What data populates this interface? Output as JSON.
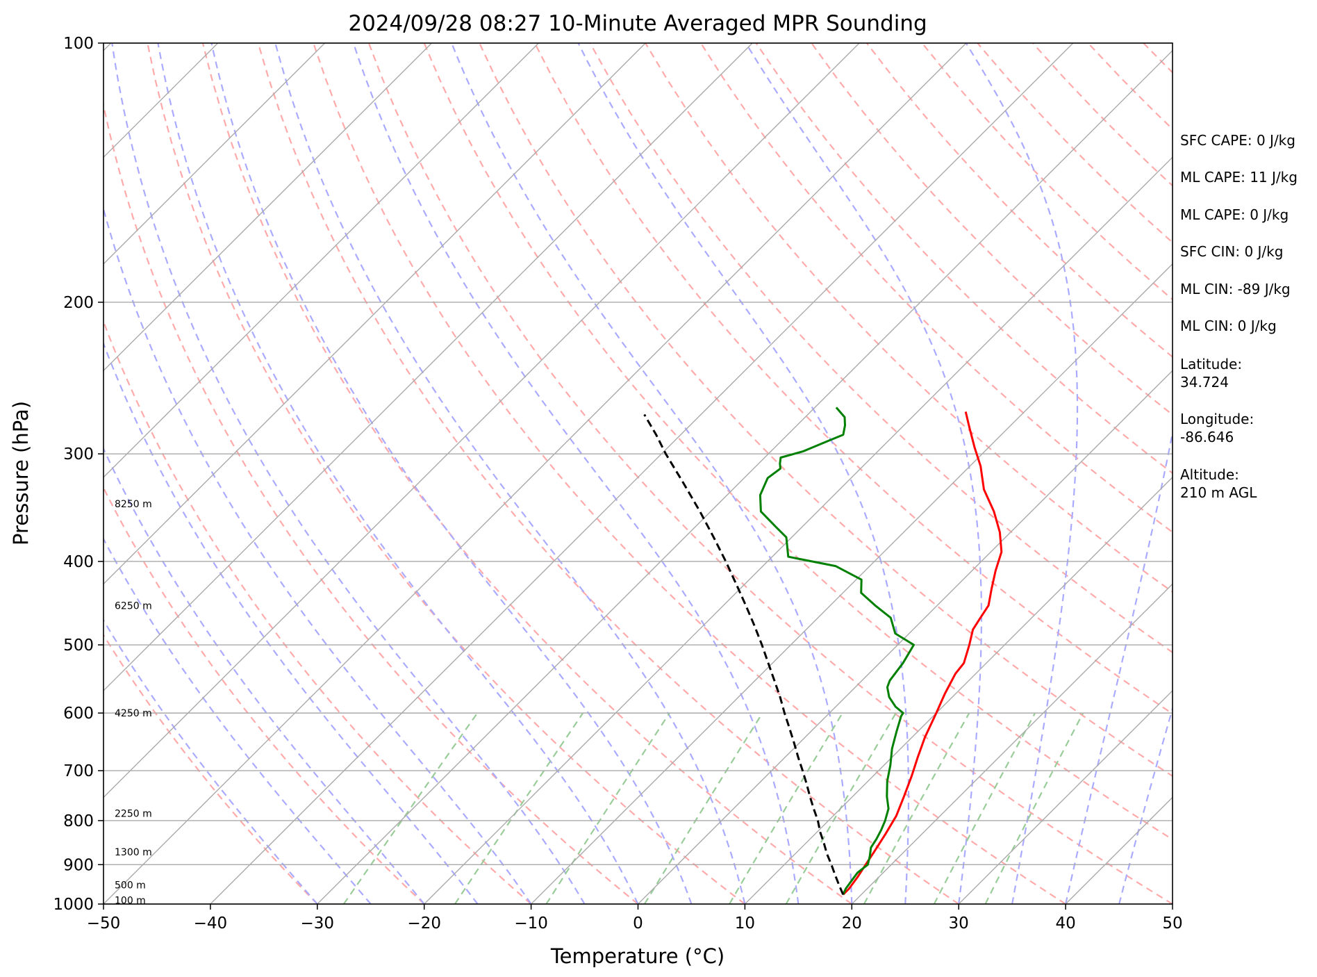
{
  "chart_data": {
    "type": "line",
    "title": "2024/09/28 08:27 10-Minute Averaged MPR Sounding",
    "xlabel": "Temperature (°C)",
    "ylabel": "Pressure (hPa)",
    "xlim": [
      -50,
      50
    ],
    "ylim": [
      1000,
      100
    ],
    "yscale": "log",
    "skew": "skew-T log-P",
    "grid": true,
    "x_ticks": [
      "−50",
      "−40",
      "−30",
      "−20",
      "−10",
      "0",
      "10",
      "20",
      "30",
      "40",
      "50"
    ],
    "x_tick_values": [
      -50,
      -40,
      -30,
      -20,
      -10,
      0,
      10,
      20,
      30,
      40,
      50
    ],
    "y_ticks": [
      "100",
      "200",
      "300",
      "400",
      "500",
      "600",
      "700",
      "800",
      "900",
      "1000"
    ],
    "y_tick_values": [
      100,
      200,
      300,
      400,
      500,
      600,
      700,
      800,
      900,
      1000
    ],
    "height_labels": [
      {
        "text": "8250 m",
        "p": 343
      },
      {
        "text": "6250 m",
        "p": 450
      },
      {
        "text": "4250 m",
        "p": 600
      },
      {
        "text": "2250 m",
        "p": 785
      },
      {
        "text": "1300 m",
        "p": 870
      },
      {
        "text": "500 m",
        "p": 950
      },
      {
        "text": "100 m",
        "p": 990
      }
    ],
    "series": [
      {
        "role": "temperature",
        "color": "#ff0000",
        "points": [
          [
            18.3,
            975
          ],
          [
            18.3,
            960
          ],
          [
            18.0,
            930
          ],
          [
            17.6,
            900
          ],
          [
            17.2,
            870
          ],
          [
            16.6,
            830
          ],
          [
            15.9,
            790
          ],
          [
            14.8,
            750
          ],
          [
            13.6,
            710
          ],
          [
            12.4,
            675
          ],
          [
            11.2,
            640
          ],
          [
            10.0,
            600
          ],
          [
            9.0,
            570
          ],
          [
            8.1,
            540
          ],
          [
            7.9,
            525
          ],
          [
            6.7,
            500
          ],
          [
            5.6,
            480
          ],
          [
            5.2,
            465
          ],
          [
            4.8,
            450
          ],
          [
            3.5,
            430
          ],
          [
            2.2,
            410
          ],
          [
            1.0,
            390
          ],
          [
            -1.0,
            370
          ],
          [
            -3.5,
            350
          ],
          [
            -6.5,
            330
          ],
          [
            -9.0,
            310
          ],
          [
            -11.3,
            295
          ],
          [
            -13.6,
            280
          ],
          [
            -15.5,
            268
          ]
        ]
      },
      {
        "role": "dewpoint",
        "color": "#008000",
        "points": [
          [
            18.3,
            975
          ],
          [
            18.0,
            960
          ],
          [
            17.8,
            940
          ],
          [
            17.6,
            920
          ],
          [
            17.8,
            900
          ],
          [
            17.2,
            880
          ],
          [
            16.5,
            860
          ],
          [
            16.2,
            840
          ],
          [
            15.8,
            820
          ],
          [
            15.3,
            800
          ],
          [
            14.5,
            775
          ],
          [
            13.2,
            750
          ],
          [
            11.8,
            720
          ],
          [
            10.6,
            690
          ],
          [
            9.2,
            660
          ],
          [
            8.0,
            630
          ],
          [
            7.0,
            605
          ],
          [
            6.9,
            600
          ],
          [
            5.6,
            590
          ],
          [
            4.1,
            575
          ],
          [
            3.0,
            560
          ],
          [
            2.6,
            550
          ],
          [
            2.2,
            525
          ],
          [
            1.5,
            500
          ],
          [
            -1.3,
            485
          ],
          [
            -3.2,
            465
          ],
          [
            -5.8,
            450
          ],
          [
            -8.3,
            435
          ],
          [
            -9.5,
            420
          ],
          [
            -13.2,
            405
          ],
          [
            -18.5,
            395
          ],
          [
            -20.5,
            375
          ],
          [
            -22.4,
            365
          ],
          [
            -25.3,
            350
          ],
          [
            -26.9,
            335
          ],
          [
            -27.8,
            320
          ],
          [
            -27.5,
            312
          ],
          [
            -28.0,
            308
          ],
          [
            -28.5,
            303
          ],
          [
            -27.0,
            298
          ],
          [
            -26.0,
            292
          ],
          [
            -24.8,
            285
          ],
          [
            -25.5,
            278
          ],
          [
            -26.3,
            272
          ],
          [
            -28.0,
            265
          ]
        ]
      },
      {
        "role": "parcel",
        "color": "#000000",
        "dash": "dashed",
        "points": [
          [
            18.3,
            975
          ],
          [
            17.0,
            950
          ],
          [
            15.7,
            925
          ],
          [
            14.4,
            900
          ],
          [
            13.0,
            875
          ],
          [
            11.7,
            850
          ],
          [
            10.3,
            825
          ],
          [
            9.0,
            800
          ],
          [
            7.5,
            775
          ],
          [
            6.0,
            750
          ],
          [
            4.5,
            725
          ],
          [
            2.9,
            700
          ],
          [
            1.2,
            675
          ],
          [
            -0.5,
            650
          ],
          [
            -2.3,
            625
          ],
          [
            -4.2,
            600
          ],
          [
            -6.1,
            575
          ],
          [
            -8.2,
            550
          ],
          [
            -10.4,
            525
          ],
          [
            -12.7,
            500
          ],
          [
            -15.2,
            475
          ],
          [
            -17.9,
            450
          ],
          [
            -20.8,
            425
          ],
          [
            -23.9,
            400
          ],
          [
            -27.3,
            375
          ],
          [
            -31.0,
            350
          ],
          [
            -35.1,
            325
          ],
          [
            -39.6,
            300
          ],
          [
            -42.3,
            285
          ],
          [
            -45.3,
            270
          ]
        ]
      }
    ]
  },
  "info_panel": [
    "SFC CAPE: 0 J/kg",
    "ML CAPE: 11 J/kg",
    "ML CAPE: 0 J/kg",
    "SFC CIN: 0 J/kg",
    "ML CIN: -89 J/kg",
    "ML CIN: 0 J/kg",
    "Latitude:",
    "34.724",
    "Longitude:",
    "-86.646",
    "Altitude:",
    "210 m AGL"
  ],
  "colors": {
    "isotherm": "#aaaaaa",
    "isobar": "#aaaaaa",
    "dry_adiabat": "#ffaaaa",
    "moist_adiabat": "#aaaaff",
    "mixing_ratio": "#99cc99"
  }
}
